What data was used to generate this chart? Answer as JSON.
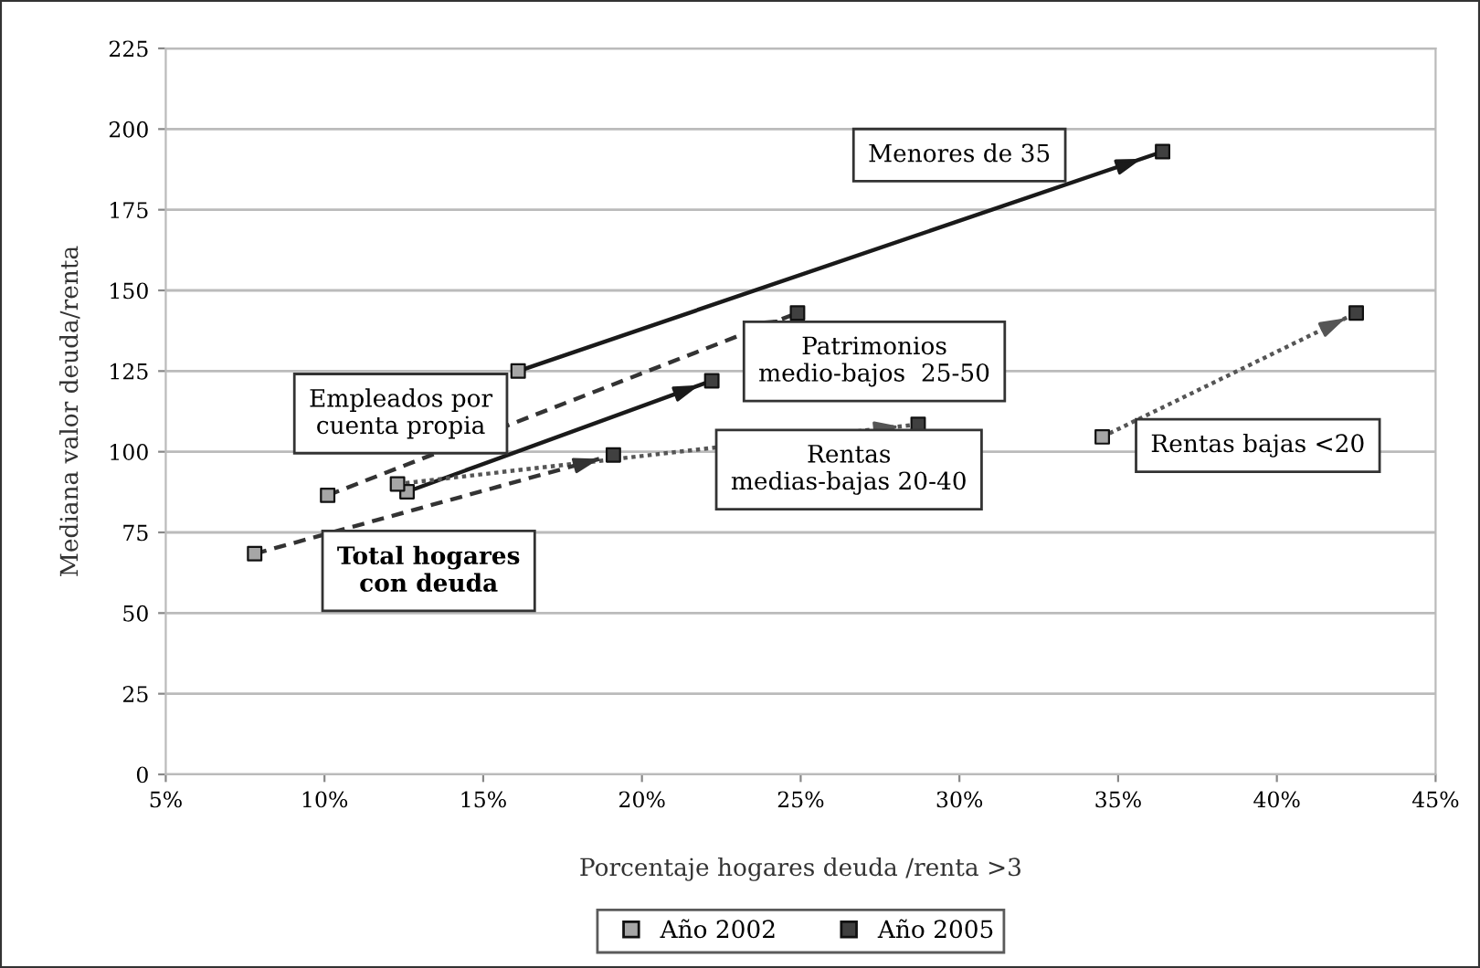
{
  "chart_data": {
    "type": "scatter",
    "xlabel": "Porcentaje hogares deuda /renta >3",
    "ylabel": "Mediana valor deuda/renta",
    "xlim": [
      5,
      45
    ],
    "xticks": [
      {
        "value": 5,
        "label": "5%"
      },
      {
        "value": 10,
        "label": "10%"
      },
      {
        "value": 15,
        "label": "15%"
      },
      {
        "value": 20,
        "label": "20%"
      },
      {
        "value": 25,
        "label": "25%"
      },
      {
        "value": 30,
        "label": "30%"
      },
      {
        "value": 35,
        "label": "35%"
      },
      {
        "value": 40,
        "label": "40%"
      },
      {
        "value": 45,
        "label": "45%"
      }
    ],
    "ylim": [
      0,
      225
    ],
    "yticks": [
      0,
      25,
      50,
      75,
      100,
      125,
      150,
      175,
      200,
      225
    ],
    "grid": "y",
    "legend": "bottom",
    "marker": "square",
    "series": [
      {
        "type": "line",
        "color": "#1a1a1a",
        "line_style": "solid",
        "marker": "none",
        "x": [
          16.1,
          36.4
        ],
        "values": [
          125,
          193
        ]
      },
      {
        "type": "line",
        "color": "#333333",
        "line_style": "dashed",
        "marker": "none",
        "x": [
          10.1,
          24.9
        ],
        "values": [
          86.5,
          143
        ]
      },
      {
        "type": "line",
        "color": "#1a1a1a",
        "line_style": "solid",
        "marker": "none",
        "x": [
          12.6,
          22.2
        ],
        "values": [
          87.6,
          122
        ]
      },
      {
        "type": "line",
        "color": "#555555",
        "line_style": "dotted",
        "marker": "none",
        "x": [
          12.3,
          28.7
        ],
        "values": [
          90,
          108.5
        ]
      },
      {
        "type": "line",
        "color": "#333333",
        "line_style": "dashed",
        "marker": "none",
        "x": [
          7.8,
          19.1
        ],
        "values": [
          68.4,
          99
        ]
      },
      {
        "type": "line",
        "color": "#555555",
        "line_style": "dotted",
        "marker": "none",
        "x": [
          34.5,
          42.5
        ],
        "values": [
          104.6,
          143
        ]
      },
      {
        "name": "Año 2002",
        "color": "#a6a6a6",
        "x": [
          16.1,
          10.1,
          12.6,
          12.3,
          7.8,
          34.5
        ],
        "values": [
          125,
          86.5,
          87.6,
          90,
          68.4,
          104.6
        ]
      },
      {
        "name": "Año 2005",
        "color": "#404040",
        "x": [
          36.4,
          24.9,
          22.2,
          28.7,
          19.1,
          42.5
        ],
        "values": [
          193,
          143,
          122,
          108.5,
          99,
          143
        ]
      }
    ],
    "annotations": [
      "Menores de 35",
      "Empleados por\ncuenta propia",
      "Patrimonios\nmedio-bajos  25-50",
      "Rentas\nmedias-bajas 20-40",
      "Total hogares\ncon deuda",
      "Rentas bajas <20"
    ]
  }
}
